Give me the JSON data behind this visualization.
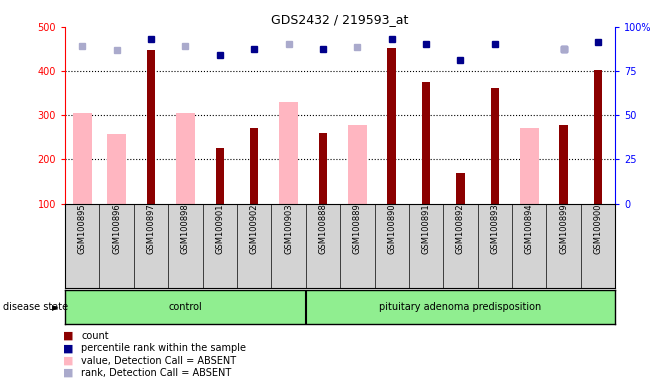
{
  "title": "GDS2432 / 219593_at",
  "samples": [
    "GSM100895",
    "GSM100896",
    "GSM100897",
    "GSM100898",
    "GSM100901",
    "GSM100902",
    "GSM100903",
    "GSM100888",
    "GSM100889",
    "GSM100890",
    "GSM100891",
    "GSM100892",
    "GSM100893",
    "GSM100894",
    "GSM100899",
    "GSM100900"
  ],
  "count_values": [
    null,
    null,
    447,
    null,
    225,
    272,
    null,
    260,
    null,
    453,
    375,
    168,
    362,
    null,
    277,
    403
  ],
  "absent_values": [
    305,
    258,
    null,
    305,
    null,
    null,
    330,
    null,
    278,
    null,
    null,
    null,
    null,
    270,
    null,
    null
  ],
  "rank_absent": [
    457,
    447,
    null,
    457,
    null,
    450,
    462,
    450,
    455,
    null,
    null,
    null,
    null,
    448,
    450,
    null
  ],
  "percentile_dark": [
    null,
    null,
    472,
    null,
    437,
    449,
    null,
    449,
    null,
    472,
    462,
    426,
    462,
    null,
    449,
    466
  ],
  "percentile_light": [
    457,
    447,
    null,
    457,
    null,
    null,
    462,
    null,
    455,
    null,
    null,
    null,
    null,
    null,
    450,
    null
  ],
  "ylim_left": [
    100,
    500
  ],
  "ylim_right": [
    0,
    100
  ],
  "yticks_left": [
    100,
    200,
    300,
    400,
    500
  ],
  "yticks_right": [
    0,
    25,
    50,
    75,
    100
  ],
  "bar_color_count": "#8B0000",
  "bar_color_absent": "#FFB6C1",
  "dot_color_dark": "#00008B",
  "dot_color_light": "#AAAACC",
  "legend_items": [
    {
      "label": "count",
      "color": "#8B0000"
    },
    {
      "label": "percentile rank within the sample",
      "color": "#00008B"
    },
    {
      "label": "value, Detection Call = ABSENT",
      "color": "#FFB6C1"
    },
    {
      "label": "rank, Detection Call = ABSENT",
      "color": "#AAAACC"
    }
  ],
  "xlabel_disease": "disease state",
  "control_label": "control",
  "adenoma_label": "pituitary adenoma predisposition",
  "n_control": 7,
  "n_adenoma": 9,
  "grey_bg": "#D3D3D3",
  "green_bg": "#90EE90"
}
